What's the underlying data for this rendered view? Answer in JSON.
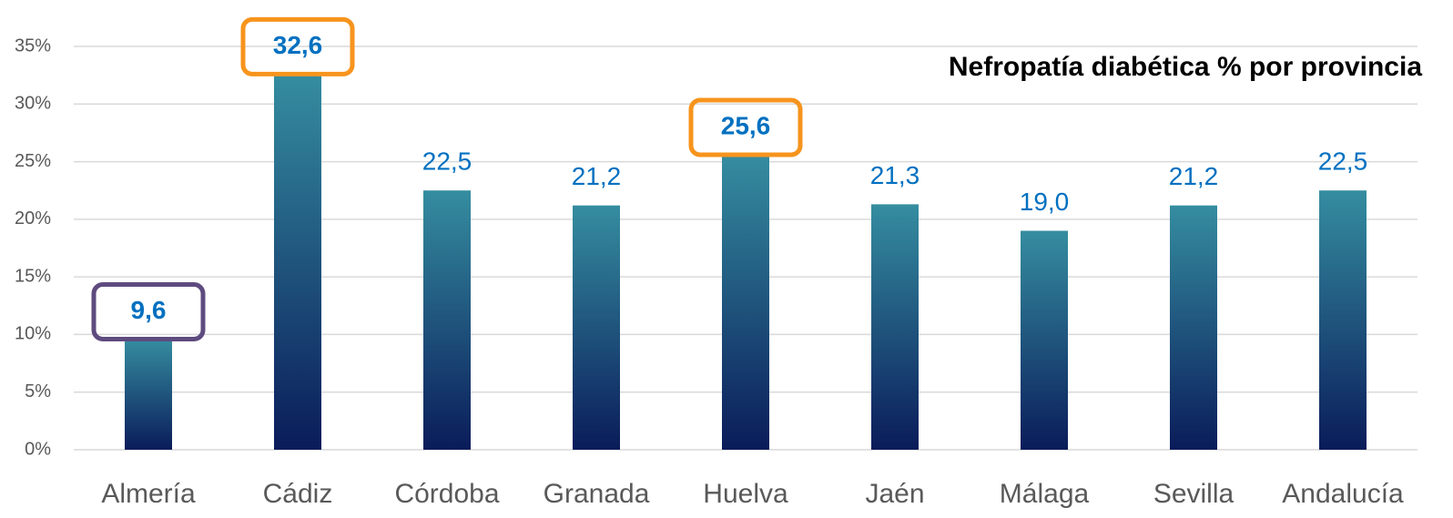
{
  "chart_data": {
    "type": "bar",
    "title": "Nefropatía diabética % por provincia",
    "categories": [
      "Almería",
      "Cádiz",
      "Córdoba",
      "Granada",
      "Huelva",
      "Jaén",
      "Málaga",
      "Sevilla",
      "Andalucía"
    ],
    "values": [
      9.6,
      32.6,
      22.5,
      21.2,
      25.6,
      21.3,
      19.0,
      21.2,
      22.5
    ],
    "value_labels": [
      "9,6",
      "32,6",
      "22,5",
      "21,2",
      "25,6",
      "21,3",
      "19,0",
      "21,2",
      "22,5"
    ],
    "color": [
      "#358da0",
      "#0a1c5a"
    ],
    "label_color": "#0070c0",
    "label_box_colors": [
      "#5e4b7f",
      "#f7941d",
      null,
      null,
      "#f7941d",
      null,
      null,
      null,
      null
    ],
    "ylim": [
      0,
      35
    ],
    "yticks": [
      {
        "value": 0,
        "label": "0%"
      },
      {
        "value": 5,
        "label": "5%"
      },
      {
        "value": 10,
        "label": "10%"
      },
      {
        "value": 15,
        "label": "15%"
      },
      {
        "value": 20,
        "label": "20%"
      },
      {
        "value": 25,
        "label": "25%"
      },
      {
        "value": 30,
        "label": "30%"
      },
      {
        "value": 35,
        "label": "35%"
      }
    ],
    "grid": true
  }
}
